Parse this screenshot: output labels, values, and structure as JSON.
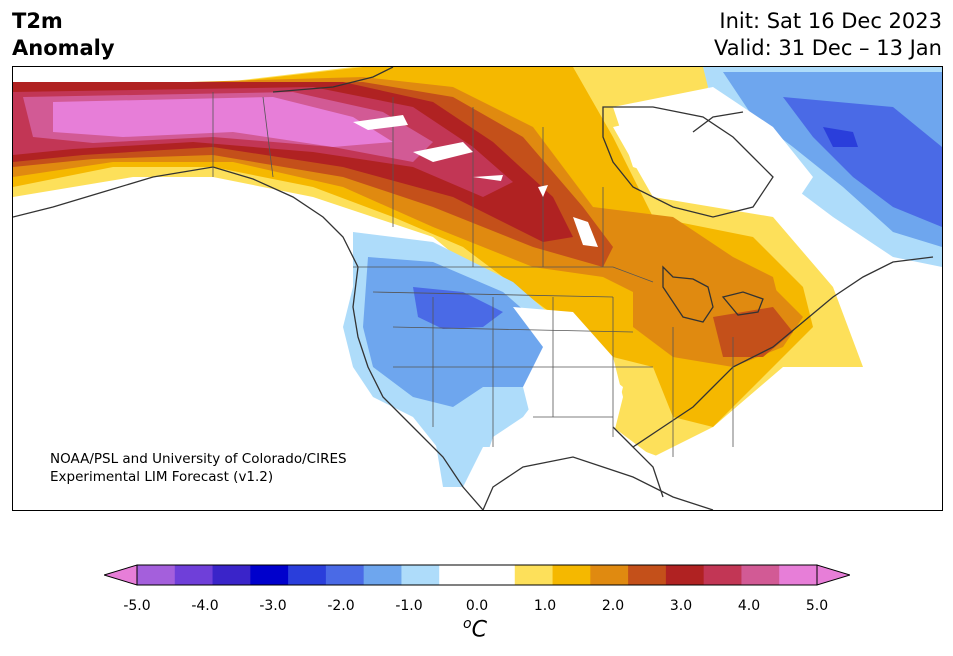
{
  "header": {
    "title_line1": "T2m",
    "title_line2": "Anomaly",
    "init_text": "Init: Sat 16 Dec 2023",
    "valid_text": "Valid: 31 Dec – 13 Jan"
  },
  "credit": {
    "line1": "NOAA/PSL and University of Colorado/CIRES",
    "line2": "Experimental LIM Forecast (v1.2)"
  },
  "colorbar": {
    "colors": [
      "#a45fdc",
      "#6f3fd9",
      "#3a24c9",
      "#0000cc",
      "#2a3edb",
      "#4a6ae6",
      "#6ea6ee",
      "#aedcfa",
      "#ffffff",
      "#ffffff",
      "#fde05a",
      "#f5b800",
      "#e08a10",
      "#c4501a",
      "#b02222",
      "#c23655",
      "#d25a95",
      "#e77ed8"
    ],
    "extend_low_color": "#e77ed8",
    "extend_high_color": "#e77ed8",
    "ticks": [
      "-5.0",
      "-4.0",
      "-3.0",
      "-2.0",
      "-1.0",
      "0.0",
      "1.0",
      "2.0",
      "3.0",
      "4.0",
      "5.0"
    ],
    "unit_base": "C",
    "unit_super": "o"
  }
}
